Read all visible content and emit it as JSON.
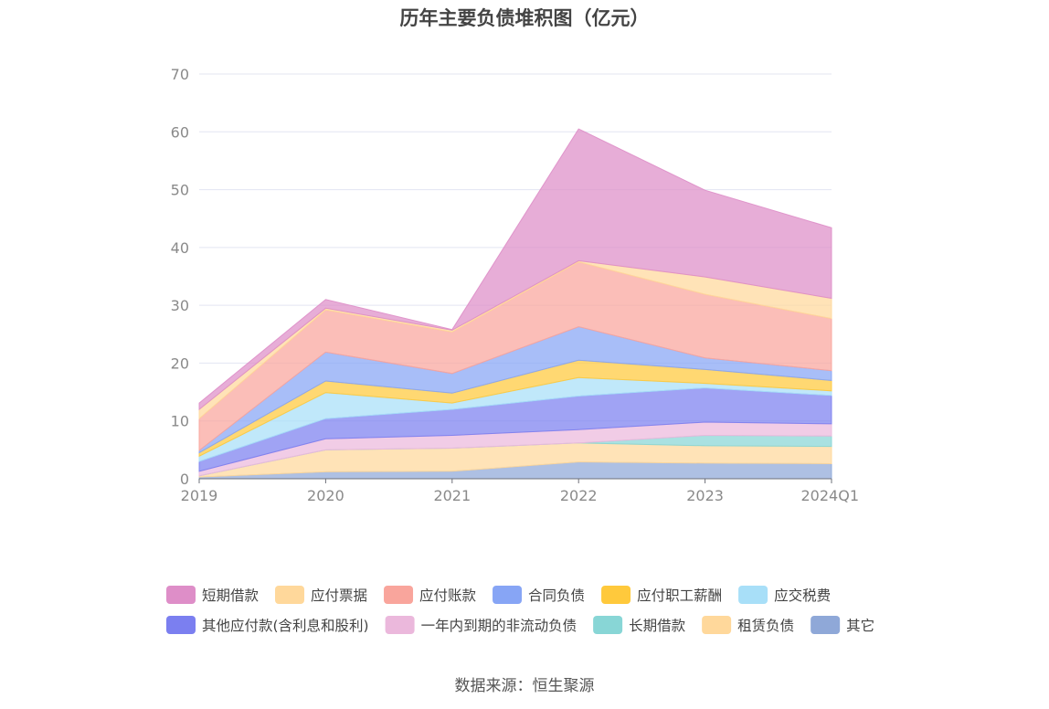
{
  "chart_data": {
    "type": "area",
    "stacked": true,
    "title": "历年主要负债堆积图（亿元）",
    "x": [
      "2019",
      "2020",
      "2021",
      "2022",
      "2023",
      "2024Q1"
    ],
    "ylim": [
      0,
      70
    ],
    "yticks": [
      0,
      10,
      20,
      30,
      40,
      50,
      60,
      70
    ],
    "grid": true,
    "legend_position": "bottom",
    "series": [
      {
        "name": "其它",
        "color": "#8fa8d8",
        "values": [
          0.3,
          1.2,
          1.3,
          2.9,
          2.7,
          2.6
        ]
      },
      {
        "name": "租赁负债",
        "color": "#ffd89b",
        "values": [
          0.2,
          3.8,
          4.0,
          3.3,
          3.0,
          3.0
        ]
      },
      {
        "name": "长期借款",
        "color": "#88d6d6",
        "values": [
          0.0,
          0.0,
          0.0,
          0.0,
          1.8,
          1.8
        ]
      },
      {
        "name": "一年内到期的非流动负债",
        "color": "#ebb8dc",
        "values": [
          0.8,
          1.9,
          2.2,
          2.3,
          2.3,
          2.1
        ]
      },
      {
        "name": "其他应付款(含利息和股利)",
        "color": "#7b7ff0",
        "values": [
          1.7,
          3.5,
          4.5,
          5.8,
          5.9,
          4.9
        ]
      },
      {
        "name": "应交税费",
        "color": "#a8dff8",
        "values": [
          0.9,
          4.5,
          1.1,
          3.2,
          0.8,
          0.8
        ]
      },
      {
        "name": "应付职工薪酬",
        "color": "#ffc93c",
        "values": [
          0.6,
          2.0,
          1.7,
          3.0,
          2.4,
          1.8
        ]
      },
      {
        "name": "合同负债",
        "color": "#87a5f5",
        "values": [
          0.4,
          5.0,
          3.4,
          5.8,
          2.0,
          1.7
        ]
      },
      {
        "name": "应付账款",
        "color": "#f9a59c",
        "values": [
          5.5,
          7.3,
          7.2,
          11.2,
          11.0,
          9.0
        ]
      },
      {
        "name": "应付票据",
        "color": "#ffd89b",
        "values": [
          1.6,
          0.3,
          0.3,
          0.2,
          3.0,
          3.5
        ]
      },
      {
        "name": "短期借款",
        "color": "#de8ec8",
        "values": [
          1.1,
          1.5,
          0.1,
          22.8,
          15.0,
          12.2
        ]
      }
    ],
    "legend_order": [
      "短期借款",
      "应付票据",
      "应付账款",
      "合同负债",
      "应付职工薪酬",
      "应交税费",
      "其他应付款(含利息和股利)",
      "一年内到期的非流动负债",
      "长期借款",
      "租赁负债",
      "其它"
    ]
  },
  "source_note": "数据来源：恒生聚源"
}
